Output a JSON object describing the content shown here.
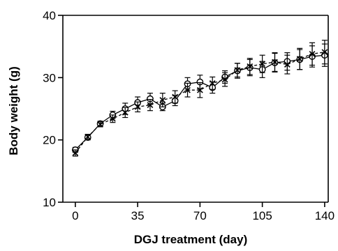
{
  "chart_data": {
    "type": "line",
    "title": "",
    "xlabel": "DGJ treatment (day)",
    "ylabel": "Body weight (g)",
    "xlim": [
      -7,
      142
    ],
    "ylim": [
      10,
      40
    ],
    "xticks": [
      0,
      35,
      70,
      105,
      140
    ],
    "yticks": [
      10,
      20,
      30,
      40
    ],
    "grid": false,
    "legend": "none",
    "series": [
      {
        "marker": "open-circle",
        "line_style": "solid",
        "x": [
          0,
          7,
          14,
          21,
          28,
          35,
          42,
          49,
          56,
          63,
          70,
          77,
          84,
          91,
          98,
          105,
          112,
          119,
          126,
          133,
          140
        ],
        "y": [
          18.4,
          20.4,
          22.6,
          24.0,
          25.0,
          26.0,
          26.6,
          25.3,
          26.3,
          29.0,
          29.3,
          28.4,
          30.1,
          31.1,
          31.6,
          31.3,
          32.4,
          32.6,
          32.9,
          33.4,
          33.6
        ],
        "err": [
          0.4,
          0.4,
          0.4,
          0.6,
          0.9,
          0.9,
          0.9,
          0.6,
          0.8,
          1.0,
          1.1,
          0.9,
          1.0,
          1.2,
          1.3,
          1.3,
          1.5,
          1.4,
          1.6,
          1.7,
          1.8
        ]
      },
      {
        "marker": "x",
        "line_style": "dashed",
        "x": [
          0,
          7,
          14,
          21,
          28,
          35,
          42,
          49,
          56,
          63,
          70,
          77,
          84,
          91,
          98,
          105,
          112,
          119,
          126,
          133,
          140
        ],
        "y": [
          17.9,
          20.5,
          22.5,
          23.4,
          24.4,
          25.3,
          25.6,
          26.4,
          26.9,
          28.0,
          28.0,
          29.1,
          29.7,
          31.2,
          31.8,
          32.2,
          32.5,
          32.1,
          33.0,
          33.8,
          34.1
        ],
        "err": [
          0.5,
          0.4,
          0.4,
          0.6,
          0.8,
          0.8,
          0.9,
          1.1,
          1.0,
          1.1,
          1.2,
          1.0,
          1.1,
          1.1,
          1.3,
          1.4,
          1.5,
          1.5,
          1.7,
          1.8,
          1.9
        ]
      }
    ]
  }
}
